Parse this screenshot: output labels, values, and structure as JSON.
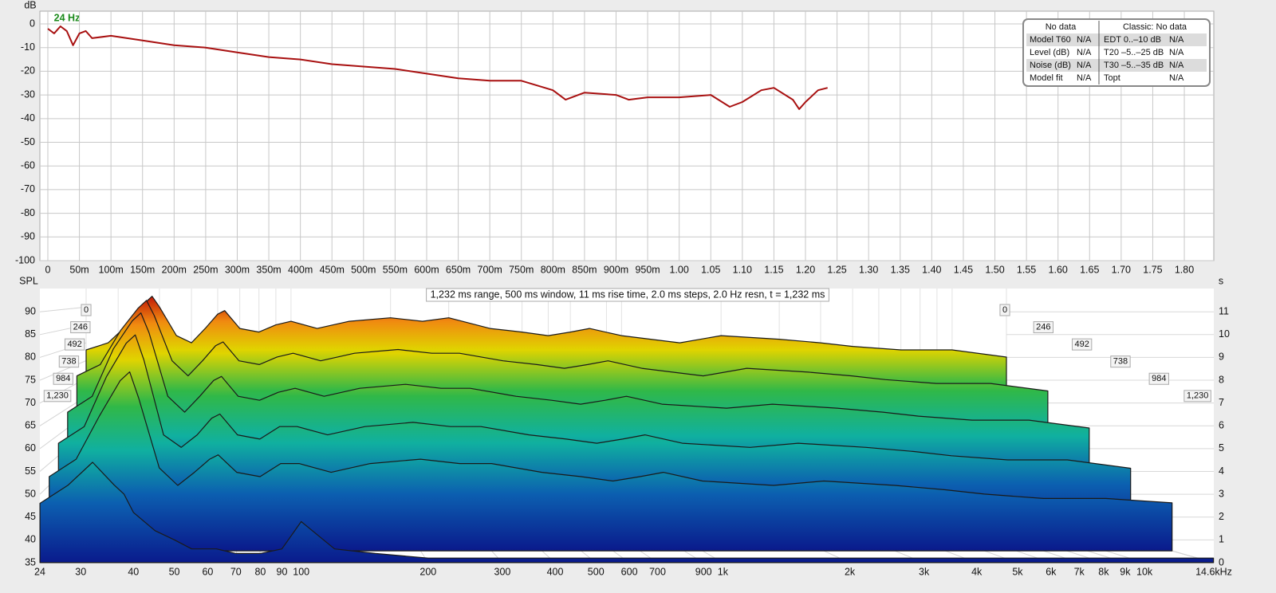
{
  "chart_data": [
    {
      "type": "line",
      "y_label": "dB",
      "annotation": "24 Hz",
      "color": "#a81010",
      "grid": true,
      "x": [
        0,
        0.01,
        0.02,
        0.03,
        0.04,
        0.05,
        0.06,
        0.07,
        0.1,
        0.15,
        0.2,
        0.25,
        0.3,
        0.35,
        0.4,
        0.45,
        0.5,
        0.55,
        0.6,
        0.65,
        0.7,
        0.75,
        0.8,
        0.82,
        0.85,
        0.9,
        0.92,
        0.95,
        1.0,
        1.05,
        1.08,
        1.1,
        1.13,
        1.15,
        1.18,
        1.19,
        1.2,
        1.22,
        1.235
      ],
      "values": [
        -2,
        -4,
        -1,
        -3,
        -9,
        -4,
        -3,
        -6,
        -5,
        -7,
        -9,
        -10,
        -12,
        -14,
        -15,
        -17,
        -18,
        -19,
        -21,
        -23,
        -24,
        -24,
        -28,
        -32,
        -29,
        -30,
        -32,
        -31,
        -31,
        -30,
        -35,
        -33,
        -28,
        -27,
        -32,
        -36,
        -33,
        -28,
        -27
      ],
      "xlim": [
        -0.0126,
        1.8467
      ],
      "ylim": [
        -100,
        5.4
      ],
      "yticks": [
        0,
        -10,
        -20,
        -30,
        -40,
        -50,
        -60,
        -70,
        -80,
        -90,
        -100
      ],
      "xticks": [
        0,
        {
          "value": 0.05,
          "label": "50m"
        },
        {
          "value": 0.1,
          "label": "100m"
        },
        {
          "value": 0.15,
          "label": "150m"
        },
        {
          "value": 0.2,
          "label": "200m"
        },
        {
          "value": 0.25,
          "label": "250m"
        },
        {
          "value": 0.3,
          "label": "300m"
        },
        {
          "value": 0.35,
          "label": "350m"
        },
        {
          "value": 0.4,
          "label": "400m"
        },
        {
          "value": 0.45,
          "label": "450m"
        },
        {
          "value": 0.5,
          "label": "500m"
        },
        {
          "value": 0.55,
          "label": "550m"
        },
        {
          "value": 0.6,
          "label": "600m"
        },
        {
          "value": 0.65,
          "label": "650m"
        },
        {
          "value": 0.7,
          "label": "700m"
        },
        {
          "value": 0.75,
          "label": "750m"
        },
        {
          "value": 0.8,
          "label": "800m"
        },
        {
          "value": 0.85,
          "label": "850m"
        },
        {
          "value": 0.9,
          "label": "900m"
        },
        {
          "value": 0.95,
          "label": "950m"
        },
        {
          "value": 1.0,
          "label": "1.00"
        },
        {
          "value": 1.05,
          "label": "1.05"
        },
        {
          "value": 1.1,
          "label": "1.10"
        },
        {
          "value": 1.15,
          "label": "1.15"
        },
        {
          "value": 1.2,
          "label": "1.20"
        },
        {
          "value": 1.25,
          "label": "1.25"
        },
        {
          "value": 1.3,
          "label": "1.30"
        },
        {
          "value": 1.35,
          "label": "1.35"
        },
        {
          "value": 1.4,
          "label": "1.40"
        },
        {
          "value": 1.45,
          "label": "1.45"
        },
        {
          "value": 1.5,
          "label": "1.50"
        },
        {
          "value": 1.55,
          "label": "1.55"
        },
        {
          "value": 1.6,
          "label": "1.60"
        },
        {
          "value": 1.65,
          "label": "1.65"
        },
        {
          "value": 1.7,
          "label": "1.70"
        },
        {
          "value": 1.75,
          "label": "1.75"
        },
        {
          "value": 1.8,
          "label": "1.80"
        }
      ]
    },
    {
      "type": "waterfall",
      "subtitle": "1,232 ms range, 500 ms window, 11 ms rise time, 2.0 ms steps,  2.0 Hz resn, t = 1,232 ms",
      "y_label": "SPL",
      "y2_label": "s",
      "log_x": true,
      "x": [
        24,
        28,
        32,
        36,
        38,
        40,
        45,
        50,
        55,
        60,
        63,
        70,
        80,
        90,
        100,
        120,
        150,
        200,
        250,
        300,
        400,
        500,
        600,
        700,
        800,
        1000,
        1500,
        2000,
        3000,
        4000,
        5000,
        7000,
        10000,
        14600
      ],
      "slices": [
        {
          "t": 0,
          "values": [
            78,
            80,
            85,
            91,
            93,
            90,
            82,
            80,
            84,
            88,
            89,
            84,
            83,
            85,
            86,
            84,
            86,
            87,
            86,
            87,
            84,
            83,
            82,
            83,
            84,
            82,
            80,
            82,
            81,
            80,
            79,
            78,
            78,
            76
          ]
        },
        {
          "t": 246,
          "values": [
            72,
            75,
            84,
            90,
            92,
            88,
            76,
            72,
            76,
            80,
            81,
            76,
            75,
            77,
            78,
            76,
            78,
            79,
            78,
            78,
            76,
            75,
            74,
            75,
            76,
            74,
            72,
            74,
            73,
            72,
            71,
            70,
            70,
            68
          ]
        },
        {
          "t": 492,
          "values": [
            64,
            68,
            80,
            87,
            89,
            84,
            68,
            64,
            68,
            72,
            73,
            68,
            67,
            69,
            70,
            68,
            70,
            71,
            70,
            70,
            68,
            67,
            66,
            67,
            68,
            66,
            65,
            66,
            65,
            64,
            63,
            62,
            62,
            60
          ]
        },
        {
          "t": 738,
          "values": [
            58,
            62,
            74,
            82,
            84,
            78,
            60,
            57,
            60,
            64,
            65,
            60,
            59,
            62,
            62,
            60,
            62,
            63,
            62,
            62,
            60,
            59,
            58,
            59,
            60,
            58,
            57,
            58,
            57,
            56,
            55,
            54,
            54,
            52
          ]
        },
        {
          "t": 984,
          "values": [
            52,
            56,
            66,
            74,
            76,
            70,
            54,
            50,
            53,
            56,
            57,
            53,
            52,
            55,
            55,
            53,
            55,
            56,
            55,
            55,
            53,
            52,
            51,
            52,
            53,
            51,
            50,
            51,
            50,
            49,
            48,
            47,
            47,
            46
          ]
        },
        {
          "t": 1230,
          "values": [
            48,
            52,
            57,
            52,
            50,
            46,
            42,
            40,
            38,
            38,
            38,
            37,
            37,
            38,
            44,
            38,
            37,
            36,
            36,
            36,
            36,
            36,
            36,
            36,
            36,
            36,
            36,
            36,
            36,
            36,
            36,
            36,
            36,
            36
          ]
        }
      ],
      "xlim": [
        24,
        14600
      ],
      "ylim": [
        35,
        95.1
      ],
      "y2lim": [
        0,
        12.02
      ],
      "zlim": [
        0,
        1232
      ],
      "xticks": [
        24,
        30,
        40,
        50,
        60,
        70,
        80,
        90,
        100,
        200,
        300,
        400,
        500,
        600,
        700,
        900,
        {
          "value": 1000,
          "label": "1k"
        },
        {
          "value": 2000,
          "label": "2k"
        },
        {
          "value": 3000,
          "label": "3k"
        },
        {
          "value": 4000,
          "label": "4k"
        },
        {
          "value": 5000,
          "label": "5k"
        },
        {
          "value": 6000,
          "label": "6k"
        },
        {
          "value": 7000,
          "label": "7k"
        },
        {
          "value": 8000,
          "label": "8k"
        },
        {
          "value": 9000,
          "label": "9k"
        },
        {
          "value": 10000,
          "label": "10k"
        },
        {
          "value": 14600,
          "label": "14.6kHz"
        }
      ],
      "yticks": [
        35,
        40,
        45,
        50,
        55,
        60,
        65,
        70,
        75,
        80,
        85,
        90
      ],
      "y2ticks": [
        0,
        1,
        2,
        3,
        4,
        5,
        6,
        7,
        8,
        9,
        10,
        11
      ],
      "zticks": [
        0,
        246,
        492,
        738,
        984,
        {
          "value": 1230,
          "label": "1,230"
        }
      ],
      "colormap": [
        {
          "value": 35,
          "color": "#0a1a8c"
        },
        {
          "value": 48,
          "color": "#0c5fb0"
        },
        {
          "value": 58,
          "color": "#10b0a0"
        },
        {
          "value": 68,
          "color": "#30b848"
        },
        {
          "value": 78,
          "color": "#e0d400"
        },
        {
          "value": 86,
          "color": "#f08a10"
        },
        {
          "value": 93,
          "color": "#c01808"
        }
      ]
    }
  ],
  "info_table": {
    "header": [
      "No data",
      "Classic: No data"
    ],
    "rows": [
      [
        "Model T60",
        "N/A",
        "EDT  0..–10 dB",
        "N/A"
      ],
      [
        "Level (dB)",
        "N/A",
        "T20 –5..–25 dB",
        "N/A"
      ],
      [
        "Noise (dB)",
        "N/A",
        "T30 –5..–35 dB",
        "N/A"
      ],
      [
        "Model fit",
        "N/A",
        "Topt",
        "N/A"
      ]
    ]
  }
}
